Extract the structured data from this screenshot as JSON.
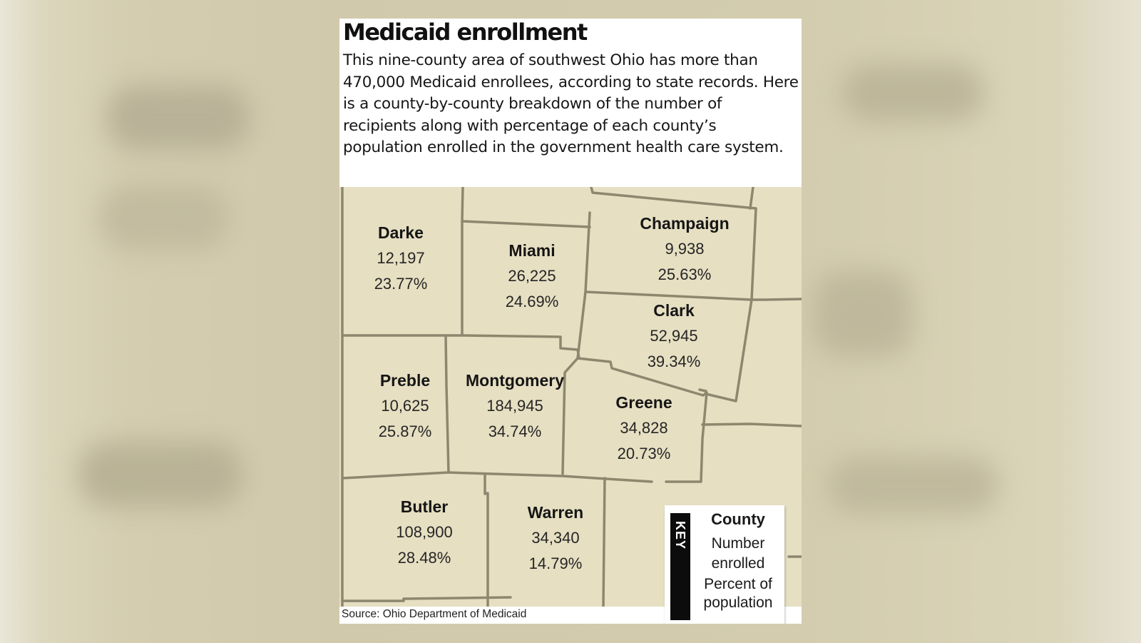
{
  "title": "Medicaid enrollment",
  "description": "This nine-county area of southwest Ohio has more than 470,000 Medicaid enrollees, according to state records. Here is a county-by-county breakdown of the number of recipients along with percentage of each county’s population enrolled in the government health care system.",
  "colors": {
    "land": "#e6dfc2",
    "border": "#8e876f",
    "background": "#ffffff"
  },
  "counties": [
    {
      "name": "Darke",
      "enrolled": "12,197",
      "percent": "23.77%"
    },
    {
      "name": "Miami",
      "enrolled": "26,225",
      "percent": "24.69%"
    },
    {
      "name": "Champaign",
      "enrolled": "9,938",
      "percent": "25.63%"
    },
    {
      "name": "Clark",
      "enrolled": "52,945",
      "percent": "39.34%"
    },
    {
      "name": "Preble",
      "enrolled": "10,625",
      "percent": "25.87%"
    },
    {
      "name": "Montgomery",
      "enrolled": "184,945",
      "percent": "34.74%"
    },
    {
      "name": "Greene",
      "enrolled": "34,828",
      "percent": "20.73%"
    },
    {
      "name": "Butler",
      "enrolled": "108,900",
      "percent": "28.48%"
    },
    {
      "name": "Warren",
      "enrolled": "34,340",
      "percent": "14.79%"
    }
  ],
  "key": {
    "label": "KEY",
    "county": "County",
    "number": "Number enrolled",
    "percent": "Percent of population"
  },
  "source": "Source: Ohio Department of Medicaid"
}
